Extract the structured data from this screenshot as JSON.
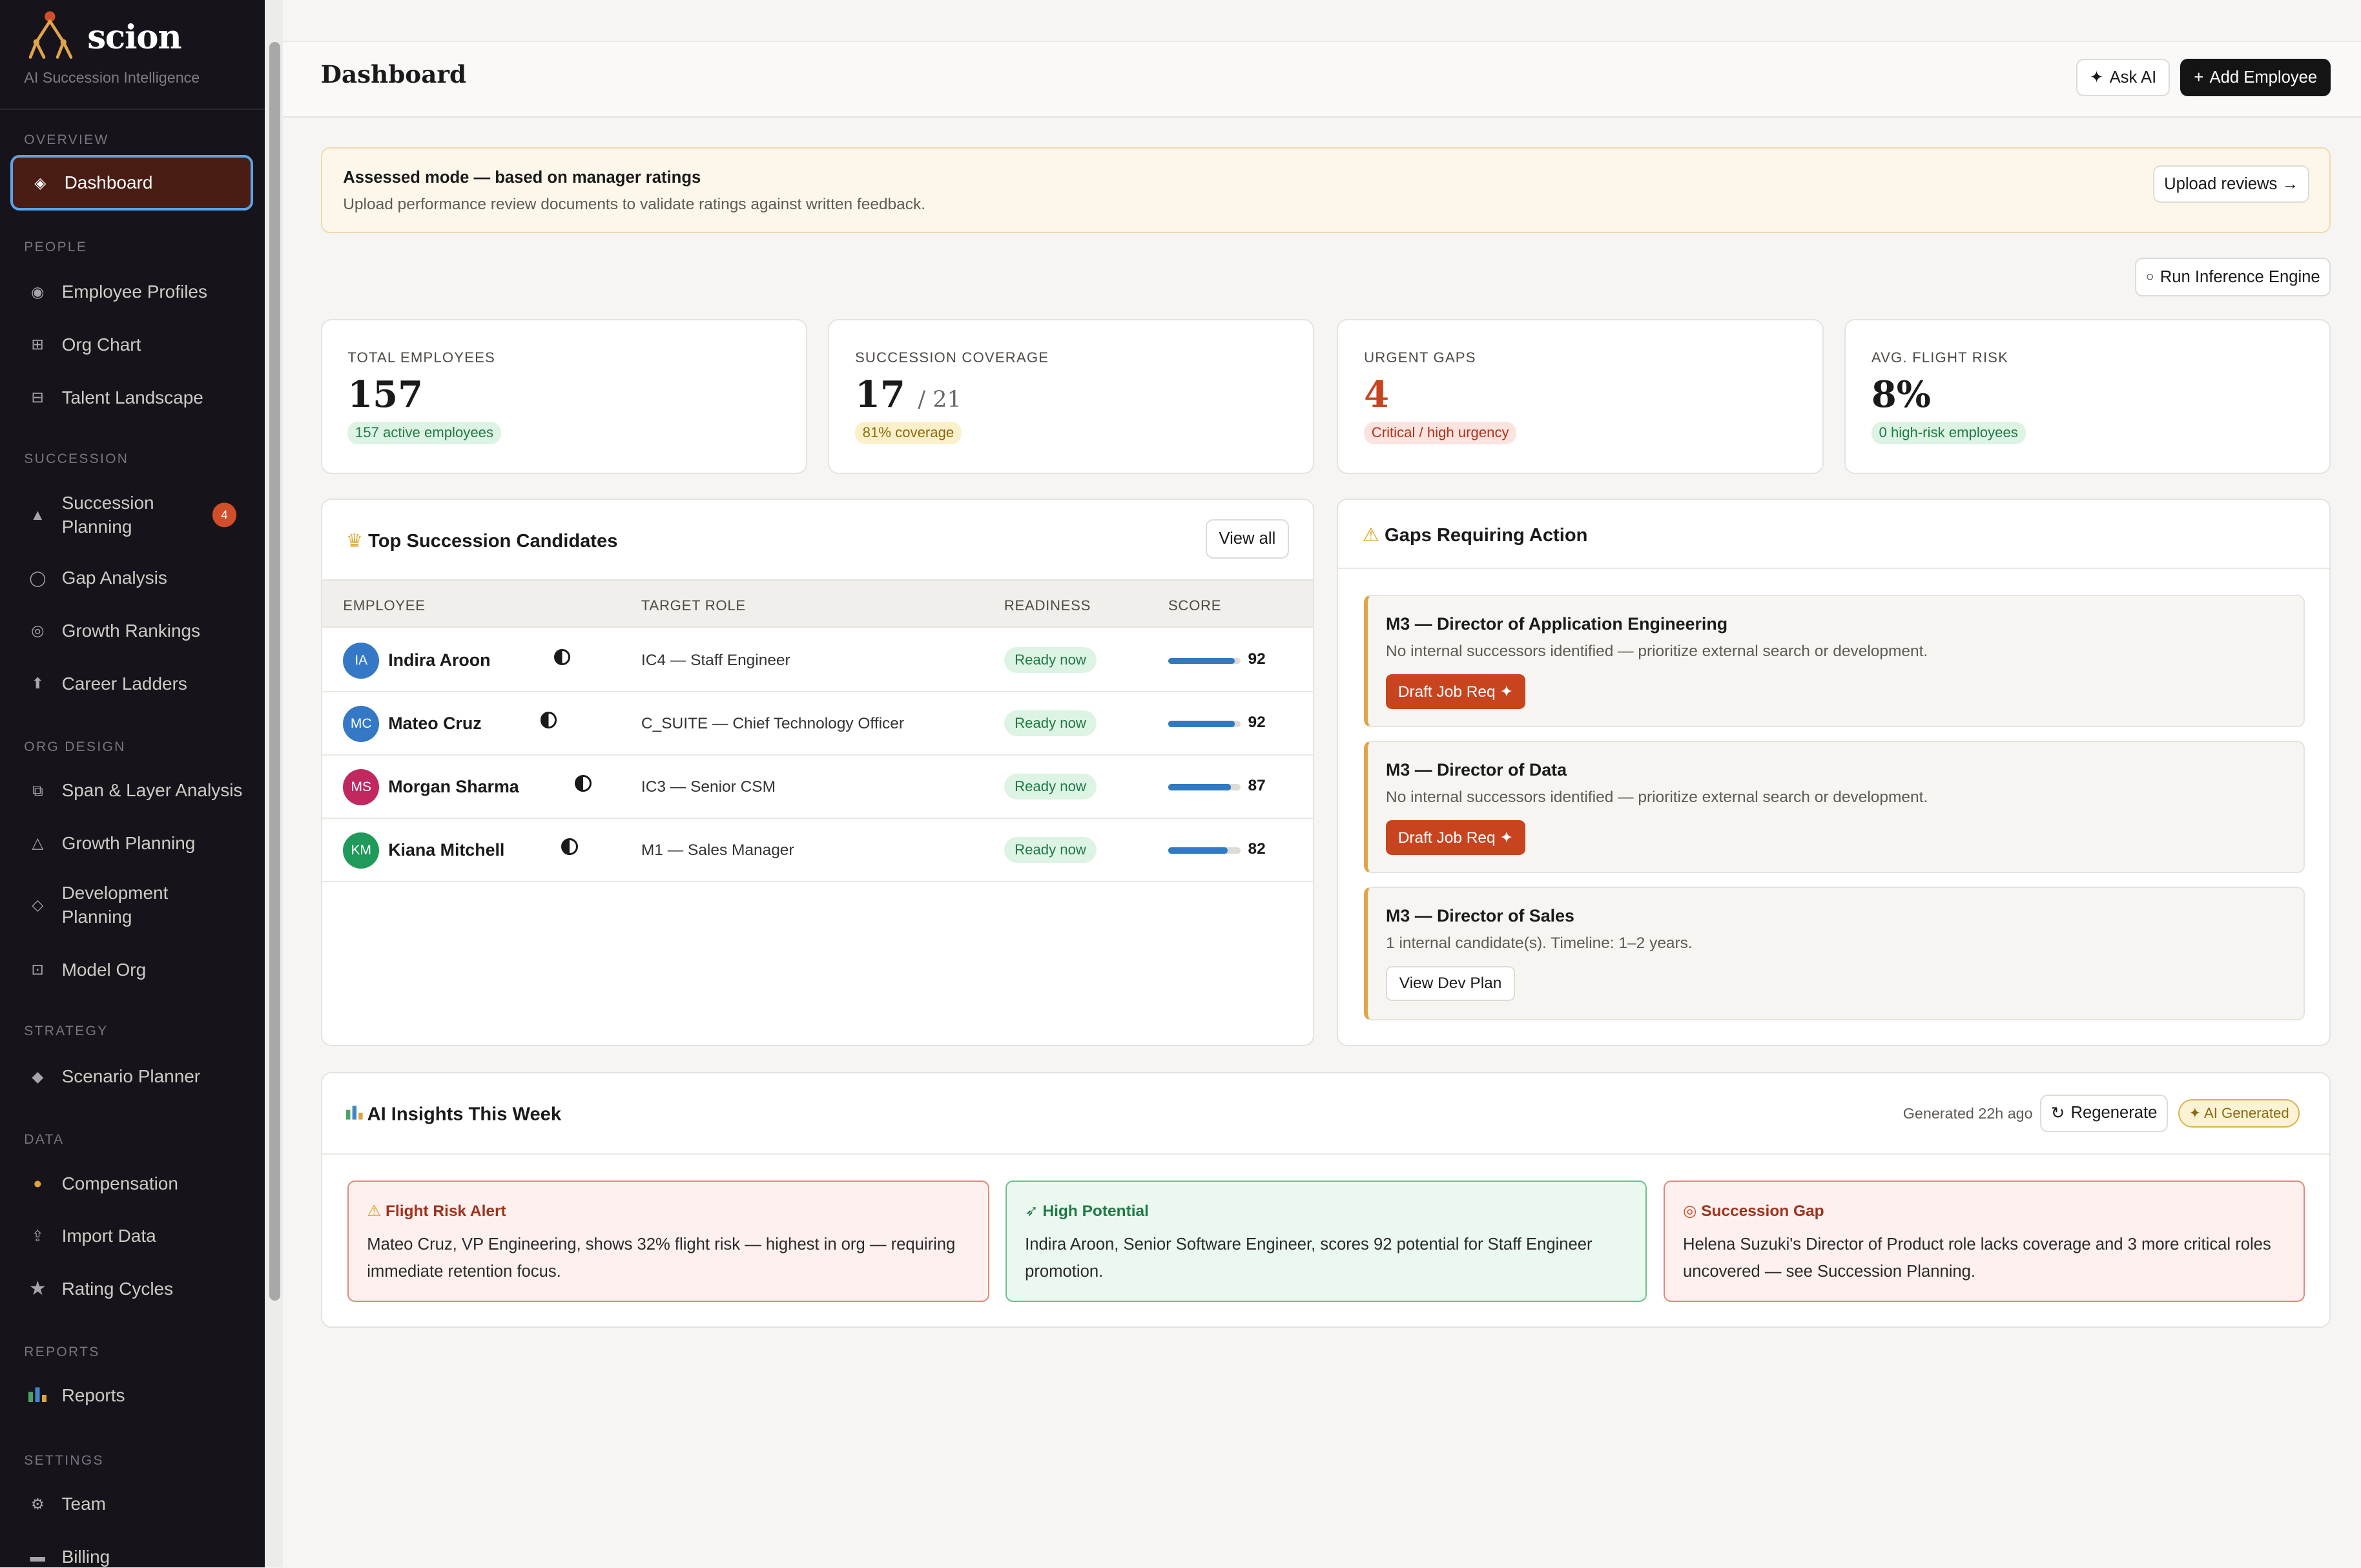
{
  "brand": {
    "name": "scion",
    "tagline": "AI Succession Intelligence"
  },
  "sidebar": {
    "sections": [
      {
        "label": "OVERVIEW"
      },
      {
        "label": "PEOPLE"
      },
      {
        "label": "SUCCESSION"
      },
      {
        "label": "ORG DESIGN"
      },
      {
        "label": "STRATEGY"
      },
      {
        "label": "DATA"
      },
      {
        "label": "REPORTS"
      },
      {
        "label": "SETTINGS"
      }
    ],
    "items": [
      {
        "label": "Dashboard",
        "icon": "diamond-icon"
      },
      {
        "label": "Employee Profiles",
        "icon": "target-icon"
      },
      {
        "label": "Org Chart",
        "icon": "grid-icon"
      },
      {
        "label": "Talent Landscape",
        "icon": "box-grid-icon"
      },
      {
        "label": "Succession Planning",
        "icon": "triangle-icon",
        "badge": "4"
      },
      {
        "label": "Gap Analysis",
        "icon": "circle-icon"
      },
      {
        "label": "Growth Rankings",
        "icon": "ring-icon"
      },
      {
        "label": "Career Ladders",
        "icon": "up-arrow-icon"
      },
      {
        "label": "Span & Layer Analysis",
        "icon": "layers-icon"
      },
      {
        "label": "Growth Planning",
        "icon": "triangle-outline-icon"
      },
      {
        "label": "Development Planning",
        "icon": "diamond-outline-icon"
      },
      {
        "label": "Model Org",
        "icon": "square-icon"
      },
      {
        "label": "Scenario Planner",
        "icon": "diamond-small-icon"
      },
      {
        "label": "Compensation",
        "icon": "money-bag-icon"
      },
      {
        "label": "Import Data",
        "icon": "upload-icon"
      },
      {
        "label": "Rating Cycles",
        "icon": "star-icon"
      },
      {
        "label": "Reports",
        "icon": "bar-chart-icon"
      },
      {
        "label": "Team",
        "icon": "gear-icon"
      },
      {
        "label": "Billing",
        "icon": "card-icon"
      }
    ]
  },
  "header": {
    "title": "Dashboard",
    "ask_ai": "Ask AI",
    "add_employee": "Add Employee"
  },
  "alert": {
    "title": "Assessed mode — based on manager ratings",
    "subtitle": "Upload performance review documents to validate ratings against written feedback.",
    "button": "Upload reviews →"
  },
  "run_engine": "Run Inference Engine",
  "stats": [
    {
      "label": "TOTAL EMPLOYEES",
      "value": "157",
      "pill": "157 active employees"
    },
    {
      "label": "SUCCESSION COVERAGE",
      "value": "17",
      "sub": "/ 21",
      "pill": "81% coverage"
    },
    {
      "label": "URGENT GAPS",
      "value": "4",
      "pill": "Critical / high urgency"
    },
    {
      "label": "AVG. FLIGHT RISK",
      "value": "8%",
      "pill": "0 high-risk employees"
    }
  ],
  "candidates": {
    "title": "Top Succession Candidates",
    "view_all": "View all",
    "columns": [
      "EMPLOYEE",
      "TARGET ROLE",
      "READINESS",
      "SCORE"
    ],
    "rows": [
      {
        "initials": "IA",
        "name": "Indira Aroon",
        "role": "IC4 — Staff Engineer",
        "readiness": "Ready now",
        "score": "92",
        "avatar_color": "#3478c6"
      },
      {
        "initials": "MC",
        "name": "Mateo Cruz",
        "role": "C_SUITE — Chief Technology Officer",
        "readiness": "Ready now",
        "score": "92",
        "avatar_color": "#3478c6"
      },
      {
        "initials": "MS",
        "name": "Morgan Sharma",
        "role": "IC3 — Senior CSM",
        "readiness": "Ready now",
        "score": "87",
        "avatar_color": "#c0285f"
      },
      {
        "initials": "KM",
        "name": "Kiana Mitchell",
        "role": "M1 — Sales Manager",
        "readiness": "Ready now",
        "score": "82",
        "avatar_color": "#1f9a5a"
      }
    ]
  },
  "gaps": {
    "title": "Gaps Requiring Action",
    "items": [
      {
        "title": "M3 — Director of Application Engineering",
        "sub": "No internal successors identified — prioritize external search or development.",
        "button": "Draft Job Req ✦"
      },
      {
        "title": "M3 — Director of Data",
        "sub": "No internal successors identified — prioritize external search or development.",
        "button": "Draft Job Req ✦"
      },
      {
        "title": "M3 — Director of Sales",
        "sub": "1 internal candidate(s). Timeline: 1–2 years.",
        "button": "View Dev Plan"
      }
    ]
  },
  "insights": {
    "title": "AI Insights This Week",
    "generated": "Generated 22h ago",
    "regenerate": "Regenerate",
    "ai_badge": "✦ AI Generated",
    "cards": [
      {
        "title": "Flight Risk Alert",
        "body": "Mateo Cruz, VP Engineering, shows 32% flight risk — highest in org — requiring immediate retention focus."
      },
      {
        "title": "High Potential",
        "body": "Indira Aroon, Senior Software Engineer, scores 92 potential for Staff Engineer promotion."
      },
      {
        "title": "Succession Gap",
        "body": "Helena Suzuki's Director of Product role lacks coverage and 3 more critical roles uncovered — see Succession Planning."
      }
    ]
  },
  "colors": {
    "accent_red": "#c8441f",
    "sidebar_bg": "#16141a",
    "progress_blue": "#2f7ac2"
  }
}
